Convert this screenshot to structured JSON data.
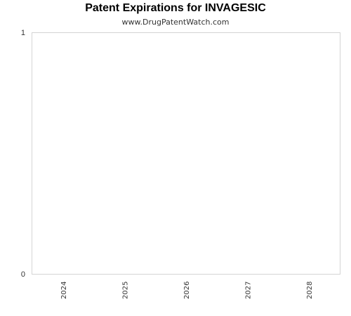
{
  "chart_data": {
    "type": "bar",
    "title": "Patent Expirations for INVAGESIC",
    "subtitle": "www.DrugPatentWatch.com",
    "categories": [
      "2024",
      "2025",
      "2026",
      "2027",
      "2028"
    ],
    "values": [
      0,
      0,
      0,
      0,
      0
    ],
    "y_ticks": [
      "0",
      "1"
    ],
    "ylim": [
      0,
      1
    ],
    "grid": false,
    "legend": "none"
  }
}
